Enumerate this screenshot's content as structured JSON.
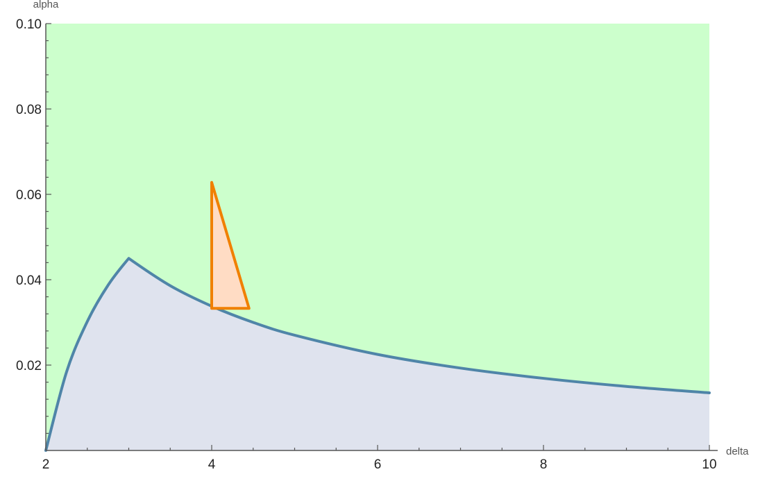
{
  "chart_data": {
    "type": "area",
    "xlabel": "delta",
    "ylabel": "alpha",
    "xlim": [
      2,
      10
    ],
    "ylim": [
      0,
      0.1
    ],
    "grid": false,
    "x_ticks": [
      2,
      4,
      6,
      8,
      10
    ],
    "x_tick_labels": [
      "2",
      "4",
      "6",
      "8",
      "10"
    ],
    "y_ticks": [
      0.02,
      0.04,
      0.06,
      0.08,
      0.1
    ],
    "y_tick_labels": [
      "0.02",
      "0.04",
      "0.06",
      "0.08",
      "0.10"
    ],
    "regions": [
      {
        "fill": "#ccffcc",
        "region": "above-curve",
        "stroke": "none"
      },
      {
        "fill": "#dfe3ee",
        "region": "below-curve",
        "stroke": "#4f85a8"
      }
    ],
    "boundary_curve": {
      "x": [
        2.0,
        2.25,
        2.5,
        2.75,
        3.0,
        3.5,
        4.0,
        4.5,
        5.0,
        6.0,
        7.0,
        8.0,
        9.0,
        10.0
      ],
      "y": [
        0.0,
        0.0184,
        0.0302,
        0.0387,
        0.045,
        0.0386,
        0.0338,
        0.03,
        0.027,
        0.0225,
        0.0193,
        0.0169,
        0.015,
        0.0135
      ],
      "color": "#4f85a8"
    },
    "triangle": {
      "x": [
        4.0,
        4.0,
        4.45
      ],
      "y": [
        0.0628,
        0.0333,
        0.0333
      ],
      "fill": "#ffdcc4",
      "stroke": "#f08000"
    }
  }
}
